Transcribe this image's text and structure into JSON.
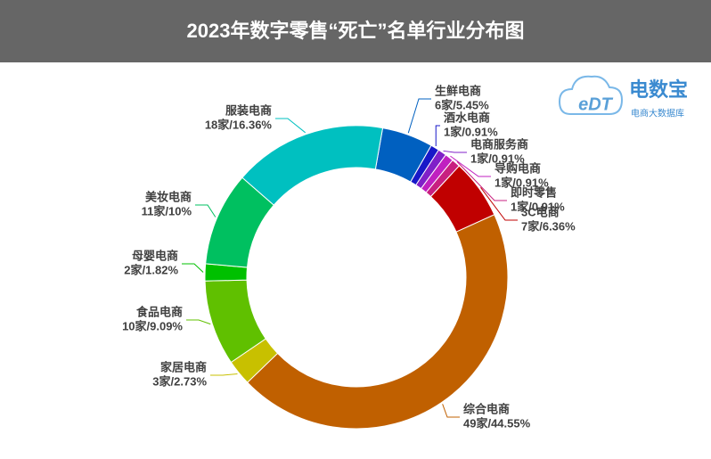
{
  "chart_data": {
    "type": "donut",
    "title": "2023年数字零售“死亡”名单行业分布图",
    "categories": [
      "生鲜电商",
      "酒水电商",
      "电商服务商",
      "导购电商",
      "即时零售",
      "3C电商",
      "综合电商",
      "家居电商",
      "食品电商",
      "母婴电商",
      "美妆电商",
      "服装电商"
    ],
    "values": [
      5.45,
      0.91,
      0.91,
      0.91,
      0.91,
      6.36,
      44.55,
      2.73,
      9.09,
      1.82,
      10,
      16.36
    ],
    "value_labels": [
      "6家/5.45%",
      "1家/0.91%",
      "1家/0.91%",
      "1家/0.91%",
      "1家/0.91%",
      "7家/6.36%",
      "49家/44.55%",
      "3家/2.73%",
      "10家/9.09%",
      "2家/1.82%",
      "11家/10%",
      "18家/16.36%"
    ],
    "colors": [
      "#0060c0",
      "#1818c8",
      "#8020c8",
      "#c020c0",
      "#c82080",
      "#c00000",
      "#c06000",
      "#c8c000",
      "#60c000",
      "#00c000",
      "#00c060",
      "#00c0c0"
    ]
  },
  "logo": {
    "mark": "eDT",
    "name": "电数宝",
    "tagline": "电商大数据库"
  }
}
